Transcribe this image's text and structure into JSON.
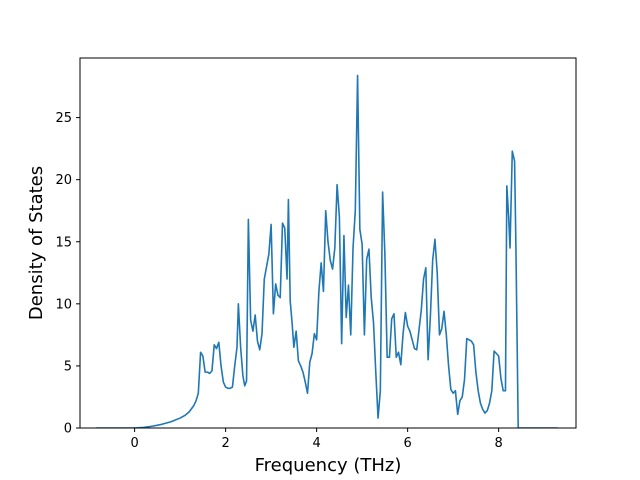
{
  "chart_data": {
    "type": "line",
    "title": "",
    "xlabel": "Frequency (THz)",
    "ylabel": "Density of States",
    "xlim": [
      -1.2,
      9.7
    ],
    "ylim": [
      0,
      29.8
    ],
    "xticks": [
      0,
      2,
      4,
      6,
      8
    ],
    "yticks": [
      0,
      5,
      10,
      15,
      20,
      25
    ],
    "grid": false,
    "legend": "none",
    "series": [
      {
        "color": "#1f77b4",
        "points": [
          [
            -0.85,
            0.0
          ],
          [
            -0.5,
            0.0
          ],
          [
            0.0,
            0.0
          ],
          [
            0.2,
            0.05
          ],
          [
            0.4,
            0.15
          ],
          [
            0.6,
            0.3
          ],
          [
            0.8,
            0.5
          ],
          [
            1.0,
            0.8
          ],
          [
            1.1,
            1.0
          ],
          [
            1.2,
            1.3
          ],
          [
            1.3,
            1.8
          ],
          [
            1.35,
            2.2
          ],
          [
            1.4,
            2.8
          ],
          [
            1.45,
            6.1
          ],
          [
            1.5,
            5.8
          ],
          [
            1.55,
            4.5
          ],
          [
            1.6,
            4.5
          ],
          [
            1.65,
            4.4
          ],
          [
            1.7,
            4.6
          ],
          [
            1.75,
            6.7
          ],
          [
            1.8,
            6.4
          ],
          [
            1.85,
            6.9
          ],
          [
            1.9,
            5.0
          ],
          [
            1.95,
            3.7
          ],
          [
            2.0,
            3.3
          ],
          [
            2.05,
            3.2
          ],
          [
            2.1,
            3.2
          ],
          [
            2.15,
            3.3
          ],
          [
            2.2,
            5.0
          ],
          [
            2.25,
            6.5
          ],
          [
            2.28,
            10.0
          ],
          [
            2.33,
            6.5
          ],
          [
            2.38,
            4.2
          ],
          [
            2.42,
            3.4
          ],
          [
            2.46,
            3.8
          ],
          [
            2.5,
            16.8
          ],
          [
            2.55,
            8.7
          ],
          [
            2.6,
            7.8
          ],
          [
            2.65,
            9.1
          ],
          [
            2.7,
            7.0
          ],
          [
            2.75,
            6.3
          ],
          [
            2.8,
            7.6
          ],
          [
            2.85,
            12.0
          ],
          [
            2.9,
            13.0
          ],
          [
            2.95,
            14.0
          ],
          [
            3.0,
            16.4
          ],
          [
            3.05,
            9.2
          ],
          [
            3.1,
            11.6
          ],
          [
            3.15,
            10.7
          ],
          [
            3.2,
            10.5
          ],
          [
            3.25,
            16.5
          ],
          [
            3.3,
            16.1
          ],
          [
            3.35,
            12.0
          ],
          [
            3.38,
            18.4
          ],
          [
            3.42,
            10.2
          ],
          [
            3.46,
            8.5
          ],
          [
            3.5,
            6.5
          ],
          [
            3.55,
            7.8
          ],
          [
            3.6,
            5.4
          ],
          [
            3.65,
            5.0
          ],
          [
            3.7,
            4.5
          ],
          [
            3.75,
            3.7
          ],
          [
            3.8,
            2.8
          ],
          [
            3.85,
            5.3
          ],
          [
            3.9,
            6.0
          ],
          [
            3.95,
            7.6
          ],
          [
            4.0,
            7.1
          ],
          [
            4.05,
            11.0
          ],
          [
            4.1,
            13.3
          ],
          [
            4.15,
            11.0
          ],
          [
            4.2,
            17.5
          ],
          [
            4.25,
            15.0
          ],
          [
            4.3,
            13.5
          ],
          [
            4.35,
            12.8
          ],
          [
            4.4,
            14.5
          ],
          [
            4.45,
            19.6
          ],
          [
            4.5,
            17.0
          ],
          [
            4.55,
            6.8
          ],
          [
            4.6,
            15.5
          ],
          [
            4.65,
            8.9
          ],
          [
            4.7,
            11.5
          ],
          [
            4.75,
            7.5
          ],
          [
            4.8,
            14.5
          ],
          [
            4.85,
            17.5
          ],
          [
            4.9,
            28.4
          ],
          [
            4.95,
            16.0
          ],
          [
            5.0,
            14.8
          ],
          [
            5.05,
            7.5
          ],
          [
            5.1,
            13.6
          ],
          [
            5.15,
            14.4
          ],
          [
            5.2,
            10.5
          ],
          [
            5.25,
            8.5
          ],
          [
            5.3,
            4.5
          ],
          [
            5.35,
            0.8
          ],
          [
            5.4,
            3.0
          ],
          [
            5.45,
            19.0
          ],
          [
            5.5,
            14.0
          ],
          [
            5.55,
            5.7
          ],
          [
            5.6,
            5.7
          ],
          [
            5.65,
            8.8
          ],
          [
            5.7,
            9.2
          ],
          [
            5.75,
            5.7
          ],
          [
            5.8,
            6.1
          ],
          [
            5.85,
            5.1
          ],
          [
            5.9,
            7.6
          ],
          [
            5.95,
            9.3
          ],
          [
            6.0,
            8.2
          ],
          [
            6.05,
            7.8
          ],
          [
            6.1,
            7.1
          ],
          [
            6.15,
            6.4
          ],
          [
            6.2,
            6.3
          ],
          [
            6.3,
            9.5
          ],
          [
            6.35,
            12.0
          ],
          [
            6.4,
            12.9
          ],
          [
            6.45,
            5.5
          ],
          [
            6.5,
            9.0
          ],
          [
            6.55,
            13.5
          ],
          [
            6.6,
            15.2
          ],
          [
            6.65,
            12.5
          ],
          [
            6.7,
            7.5
          ],
          [
            6.75,
            8.0
          ],
          [
            6.8,
            9.4
          ],
          [
            6.85,
            7.5
          ],
          [
            6.9,
            5.0
          ],
          [
            6.95,
            3.1
          ],
          [
            7.0,
            2.8
          ],
          [
            7.05,
            3.0
          ],
          [
            7.1,
            1.1
          ],
          [
            7.15,
            2.2
          ],
          [
            7.2,
            2.5
          ],
          [
            7.25,
            3.9
          ],
          [
            7.3,
            7.2
          ],
          [
            7.35,
            7.1
          ],
          [
            7.4,
            7.0
          ],
          [
            7.45,
            6.7
          ],
          [
            7.5,
            4.5
          ],
          [
            7.55,
            3.0
          ],
          [
            7.6,
            2.0
          ],
          [
            7.65,
            1.5
          ],
          [
            7.7,
            1.2
          ],
          [
            7.75,
            1.4
          ],
          [
            7.8,
            2.0
          ],
          [
            7.85,
            3.0
          ],
          [
            7.9,
            6.2
          ],
          [
            7.95,
            6.0
          ],
          [
            8.0,
            5.8
          ],
          [
            8.05,
            4.0
          ],
          [
            8.1,
            3.0
          ],
          [
            8.15,
            3.0
          ],
          [
            8.18,
            19.5
          ],
          [
            8.22,
            17.0
          ],
          [
            8.25,
            14.5
          ],
          [
            8.3,
            22.3
          ],
          [
            8.35,
            21.5
          ],
          [
            8.38,
            14.5
          ],
          [
            8.43,
            0.0
          ],
          [
            8.5,
            0.0
          ],
          [
            9.0,
            0.0
          ],
          [
            9.3,
            0.0
          ]
        ]
      }
    ]
  }
}
